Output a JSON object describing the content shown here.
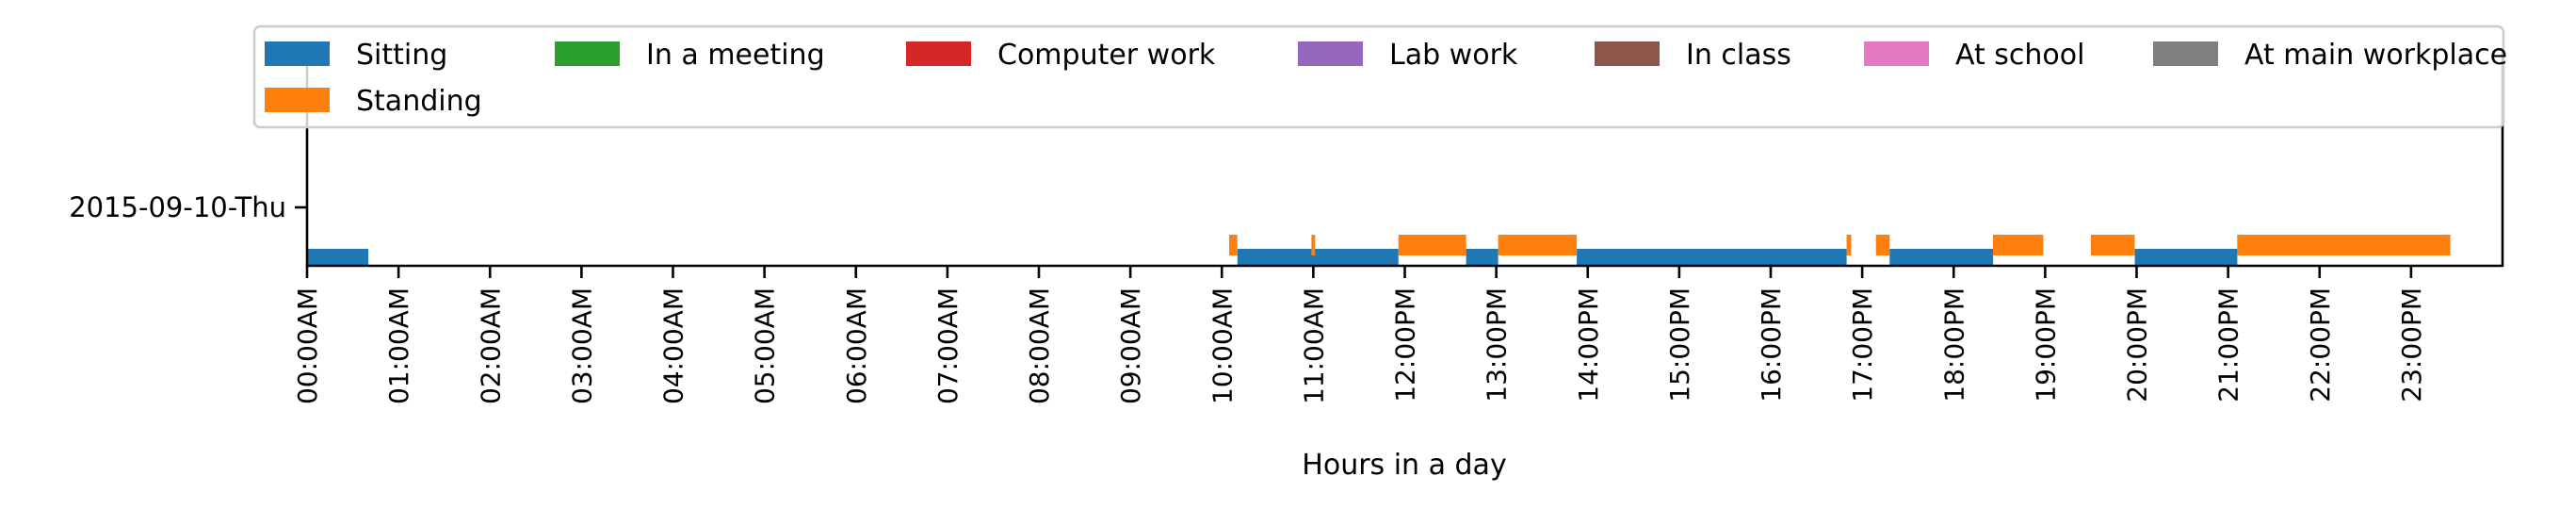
{
  "chart_data": {
    "type": "timeline",
    "xlabel": "Hours in a day",
    "ylabel": "",
    "xlim": [
      0,
      24
    ],
    "x_tick_values": [
      0,
      1,
      2,
      3,
      4,
      5,
      6,
      7,
      8,
      9,
      10,
      11,
      12,
      13,
      14,
      15,
      16,
      17,
      18,
      19,
      20,
      21,
      22,
      23
    ],
    "x_tick_labels": [
      "00:00AM",
      "01:00AM",
      "02:00AM",
      "03:00AM",
      "04:00AM",
      "05:00AM",
      "06:00AM",
      "07:00AM",
      "08:00AM",
      "09:00AM",
      "10:00AM",
      "11:00AM",
      "12:00PM",
      "13:00PM",
      "14:00PM",
      "15:00PM",
      "16:00PM",
      "17:00PM",
      "18:00PM",
      "19:00PM",
      "20:00PM",
      "21:00PM",
      "22:00PM",
      "23:00PM"
    ],
    "rows": [
      "2015-09-10-Thu"
    ],
    "legend": {
      "placement": "top",
      "entries": [
        {
          "name": "Sitting",
          "color": "#1f77b4"
        },
        {
          "name": "In a meeting",
          "color": "#2ca02c"
        },
        {
          "name": "Computer work",
          "color": "#d62728"
        },
        {
          "name": "Lab work",
          "color": "#9467bd"
        },
        {
          "name": "In class",
          "color": "#8c564b"
        },
        {
          "name": "At school",
          "color": "#e377c2"
        },
        {
          "name": "At main workplace",
          "color": "#7f7f7f"
        },
        {
          "name": "Standing",
          "color": "#ff7f0e"
        }
      ]
    },
    "series": [
      {
        "name": "Sitting",
        "color": "#1f77b4",
        "intervals": [
          [
            0.0,
            0.67
          ],
          [
            10.17,
            11.93
          ],
          [
            12.67,
            13.02
          ],
          [
            13.88,
            16.83
          ],
          [
            17.3,
            18.43
          ],
          [
            19.98,
            21.1
          ]
        ]
      },
      {
        "name": "Standing",
        "color": "#ff7f0e",
        "intervals": [
          [
            10.08,
            10.17
          ],
          [
            10.98,
            11.02
          ],
          [
            11.93,
            12.67
          ],
          [
            13.02,
            13.88
          ],
          [
            16.83,
            16.88
          ],
          [
            17.15,
            17.3
          ],
          [
            18.43,
            18.98
          ],
          [
            19.5,
            19.98
          ],
          [
            21.1,
            23.43
          ]
        ]
      }
    ]
  }
}
